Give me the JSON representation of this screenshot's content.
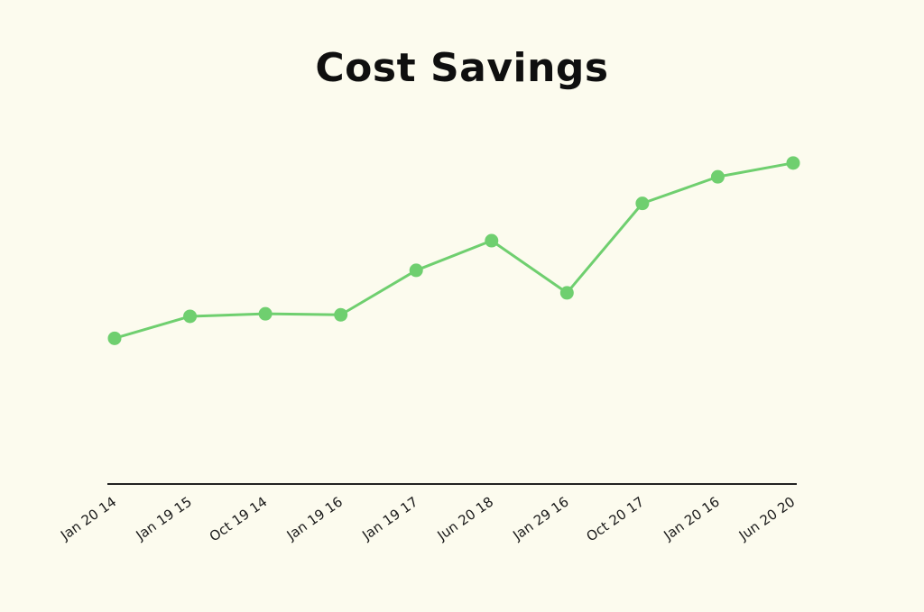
{
  "chart_data": {
    "type": "line",
    "title": "Cost Savings",
    "xlabel": "",
    "ylabel": "",
    "categories": [
      "Jan 20 14",
      "Jan 19 15",
      "Oct 19 14",
      "Jan 19 16",
      "Jan 19 17",
      "Jun 20 18",
      "Jan 29 16",
      "Oct 20 17",
      "Jan 20 16",
      "Jun 20 20"
    ],
    "series": [
      {
        "values": [
          28.5,
          32.8,
          33.3,
          33.1,
          41.8,
          47.6,
          37.4,
          54.9,
          60.1,
          62.8
        ]
      }
    ],
    "ylim": [
      0,
      70
    ],
    "grid": false,
    "colors": {
      "line": "#6fcf6f",
      "axis": "#222222",
      "background": "#fcfbee"
    }
  }
}
